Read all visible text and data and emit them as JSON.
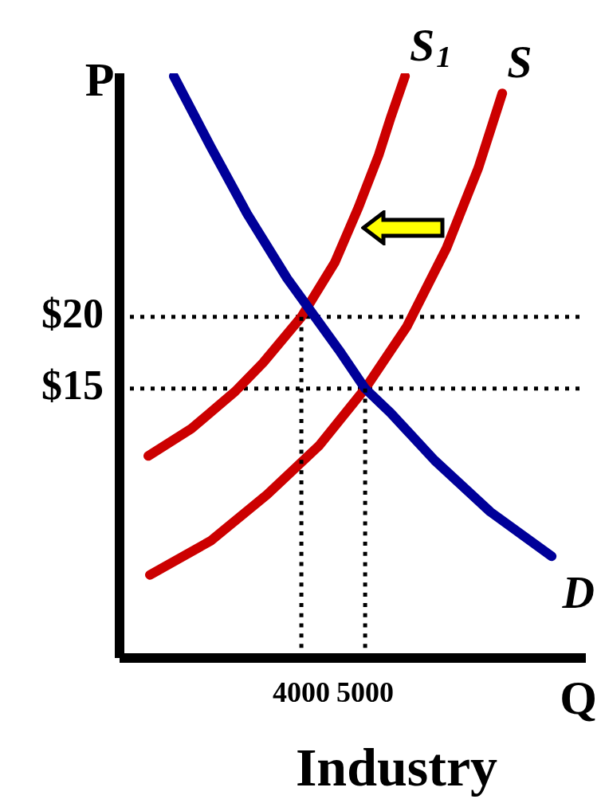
{
  "chart_data": {
    "type": "line",
    "xlabel": "Q",
    "ylabel": "P",
    "annotations": [
      "Industry"
    ],
    "xlim": [
      1150,
      8460
    ],
    "ylim": [
      -3.8,
      37
    ],
    "xticks": [
      4000,
      5000
    ],
    "yticks": [
      {
        "value": 15,
        "label": "$15"
      },
      {
        "value": 20,
        "label": "$20"
      }
    ],
    "grid": false,
    "legend": false,
    "marker": "none",
    "ref_lines": [
      {
        "axis": "y",
        "value": 20,
        "color": "#000000",
        "line_style": "dotted"
      },
      {
        "axis": "y",
        "value": 15,
        "color": "#000000",
        "line_style": "dotted"
      }
    ],
    "series": [
      {
        "name": "D",
        "color": "#000099",
        "x": [
          2000,
          2587.5,
          3150,
          3775,
          4587.5,
          5000,
          5400,
          6087.5,
          6962.5,
          7925
        ],
        "values": [
          36.8,
          31.8,
          27.2,
          22.7,
          17.7,
          15,
          13.3,
          10,
          6.4,
          3.3
        ]
      },
      {
        "name": "S",
        "color": "#cc0000",
        "x": [
          1625,
          2587.5,
          3462.5,
          4275,
          5000,
          5650,
          6275,
          6775,
          7150
        ],
        "values": [
          2,
          4.4,
          7.6,
          11,
          15,
          19.3,
          24.8,
          30.4,
          35.6
        ]
      },
      {
        "name": "S$_{1}$",
        "color": "#cc0000",
        "x": [
          1600,
          2275,
          2962.5,
          3400,
          4000,
          4525,
          4900,
          5212.5,
          5400,
          5625
        ],
        "values": [
          10.3,
          12.2,
          14.8,
          16.8,
          20,
          23.8,
          27.7,
          31.3,
          33.9,
          36.8
        ]
      },
      {
        "color": "#000000",
        "line_style": "dotted",
        "x": [
          4000,
          4000
        ],
        "values": [
          20,
          -3.8
        ]
      },
      {
        "color": "#000000",
        "line_style": "dotted",
        "x": [
          5000,
          5000
        ],
        "values": [
          15,
          -3.8
        ]
      }
    ]
  }
}
